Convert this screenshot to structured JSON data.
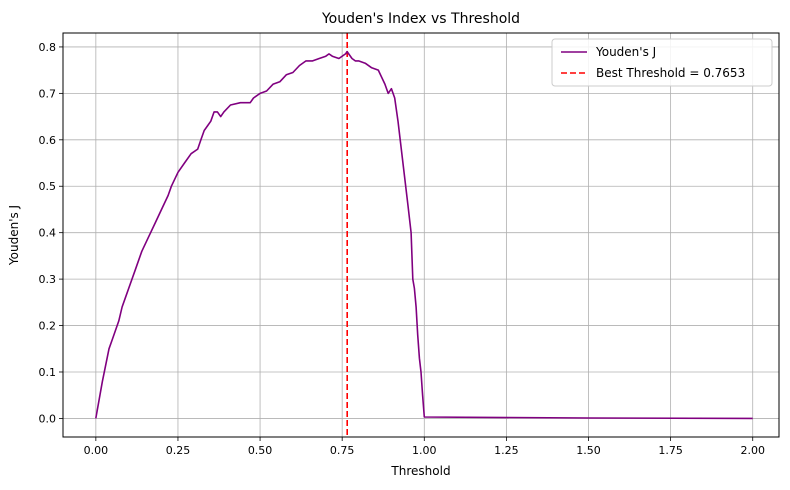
{
  "chart_data": {
    "type": "line",
    "title": "Youden's Index vs Threshold",
    "xlabel": "Threshold",
    "ylabel": "Youden's J",
    "xlim": [
      -0.1,
      2.08
    ],
    "ylim": [
      -0.04,
      0.83
    ],
    "xticks": [
      0.0,
      0.25,
      0.5,
      0.75,
      1.0,
      1.25,
      1.5,
      1.75,
      2.0
    ],
    "xtick_labels": [
      "0.00",
      "0.25",
      "0.50",
      "0.75",
      "1.00",
      "1.25",
      "1.50",
      "1.75",
      "2.00"
    ],
    "yticks": [
      0.0,
      0.1,
      0.2,
      0.3,
      0.4,
      0.5,
      0.6,
      0.7,
      0.8
    ],
    "ytick_labels": [
      "0.0",
      "0.1",
      "0.2",
      "0.3",
      "0.4",
      "0.5",
      "0.6",
      "0.7",
      "0.8"
    ],
    "grid": true,
    "legend_position": "top-right",
    "series": [
      {
        "name": "Youden's J",
        "color": "#800080",
        "x": [
          0.0,
          0.02,
          0.04,
          0.05,
          0.07,
          0.08,
          0.09,
          0.1,
          0.12,
          0.14,
          0.16,
          0.18,
          0.2,
          0.22,
          0.23,
          0.25,
          0.27,
          0.29,
          0.31,
          0.32,
          0.33,
          0.34,
          0.35,
          0.36,
          0.37,
          0.38,
          0.39,
          0.41,
          0.44,
          0.47,
          0.48,
          0.5,
          0.52,
          0.54,
          0.56,
          0.58,
          0.6,
          0.62,
          0.64,
          0.66,
          0.68,
          0.7,
          0.71,
          0.72,
          0.74,
          0.76,
          0.765,
          0.78,
          0.79,
          0.8,
          0.82,
          0.84,
          0.86,
          0.88,
          0.89,
          0.9,
          0.91,
          0.92,
          0.93,
          0.94,
          0.95,
          0.96,
          0.965,
          0.97,
          0.975,
          0.98,
          0.985,
          0.99,
          0.995,
          1.0,
          1.5,
          2.0
        ],
        "y": [
          0.0,
          0.08,
          0.15,
          0.17,
          0.21,
          0.24,
          0.26,
          0.28,
          0.32,
          0.36,
          0.39,
          0.42,
          0.45,
          0.48,
          0.5,
          0.53,
          0.55,
          0.57,
          0.58,
          0.6,
          0.62,
          0.63,
          0.64,
          0.66,
          0.66,
          0.65,
          0.66,
          0.675,
          0.68,
          0.68,
          0.69,
          0.7,
          0.705,
          0.72,
          0.725,
          0.74,
          0.745,
          0.76,
          0.77,
          0.77,
          0.775,
          0.78,
          0.785,
          0.78,
          0.775,
          0.785,
          0.79,
          0.775,
          0.77,
          0.77,
          0.765,
          0.755,
          0.75,
          0.72,
          0.7,
          0.71,
          0.69,
          0.64,
          0.58,
          0.52,
          0.46,
          0.4,
          0.3,
          0.28,
          0.24,
          0.18,
          0.13,
          0.1,
          0.05,
          0.003,
          0.001,
          0.0
        ]
      }
    ],
    "vlines": [
      {
        "name": "Best Threshold = 0.7653",
        "x": 0.7653,
        "color": "#ff0000",
        "style": "dashed"
      }
    ]
  }
}
